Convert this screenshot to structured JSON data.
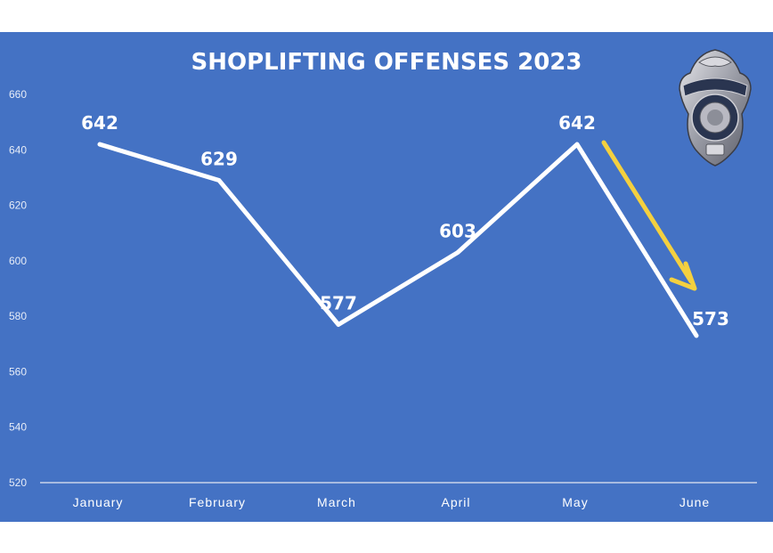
{
  "chart_data": {
    "type": "line",
    "title": "SHOPLIFTING OFFENSES 2023",
    "categories": [
      "January",
      "February",
      "March",
      "April",
      "May",
      "June"
    ],
    "series": [
      {
        "values": [
          642,
          629,
          577,
          603,
          642,
          573
        ]
      }
    ],
    "ylim": [
      520,
      660
    ],
    "yticks": [
      520,
      540,
      560,
      580,
      600,
      620,
      640,
      660
    ],
    "xlabel": "",
    "ylabel": "",
    "grid": false,
    "data_labels": true,
    "annotation": "yellow downward arrow from May toward June"
  },
  "badge": {
    "icon": "police-badge-icon"
  },
  "colors": {
    "background": "#4472c4",
    "line": "#ffffff",
    "arrow": "#f4d03f",
    "text": "#ffffff"
  }
}
